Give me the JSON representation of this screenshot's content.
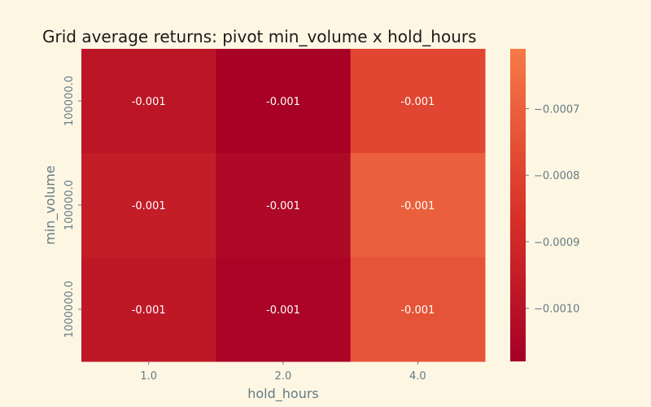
{
  "chart_data": {
    "type": "heatmap",
    "title": "Grid average returns: pivot min_volume x hold_hours",
    "xlabel": "hold_hours",
    "ylabel": "min_volume",
    "x_categories": [
      "1.0",
      "2.0",
      "4.0"
    ],
    "y_categories": [
      "100000.0",
      "100000.0",
      "1000000.0"
    ],
    "values": [
      [
        -0.00098,
        -0.00107,
        -0.00079
      ],
      [
        -0.00095,
        -0.00104,
        -0.0007
      ],
      [
        -0.00097,
        -0.00106,
        -0.00074
      ]
    ],
    "cell_labels": [
      [
        "-0.001",
        "-0.001",
        "-0.001"
      ],
      [
        "-0.001",
        "-0.001",
        "-0.001"
      ],
      [
        "-0.001",
        "-0.001",
        "-0.001"
      ]
    ],
    "colormap": "RdOrange",
    "colorbar": {
      "range": [
        -0.00108,
        -0.00061
      ],
      "ticks": [
        -0.0007,
        -0.0008,
        -0.0009,
        -0.001
      ],
      "tick_labels": [
        "−0.0007",
        "−0.0008",
        "−0.0009",
        "−0.0010"
      ]
    },
    "colors": {
      "low": "#a50026",
      "mid": "#d62f27",
      "high": "#f67a47"
    },
    "grid": false
  }
}
